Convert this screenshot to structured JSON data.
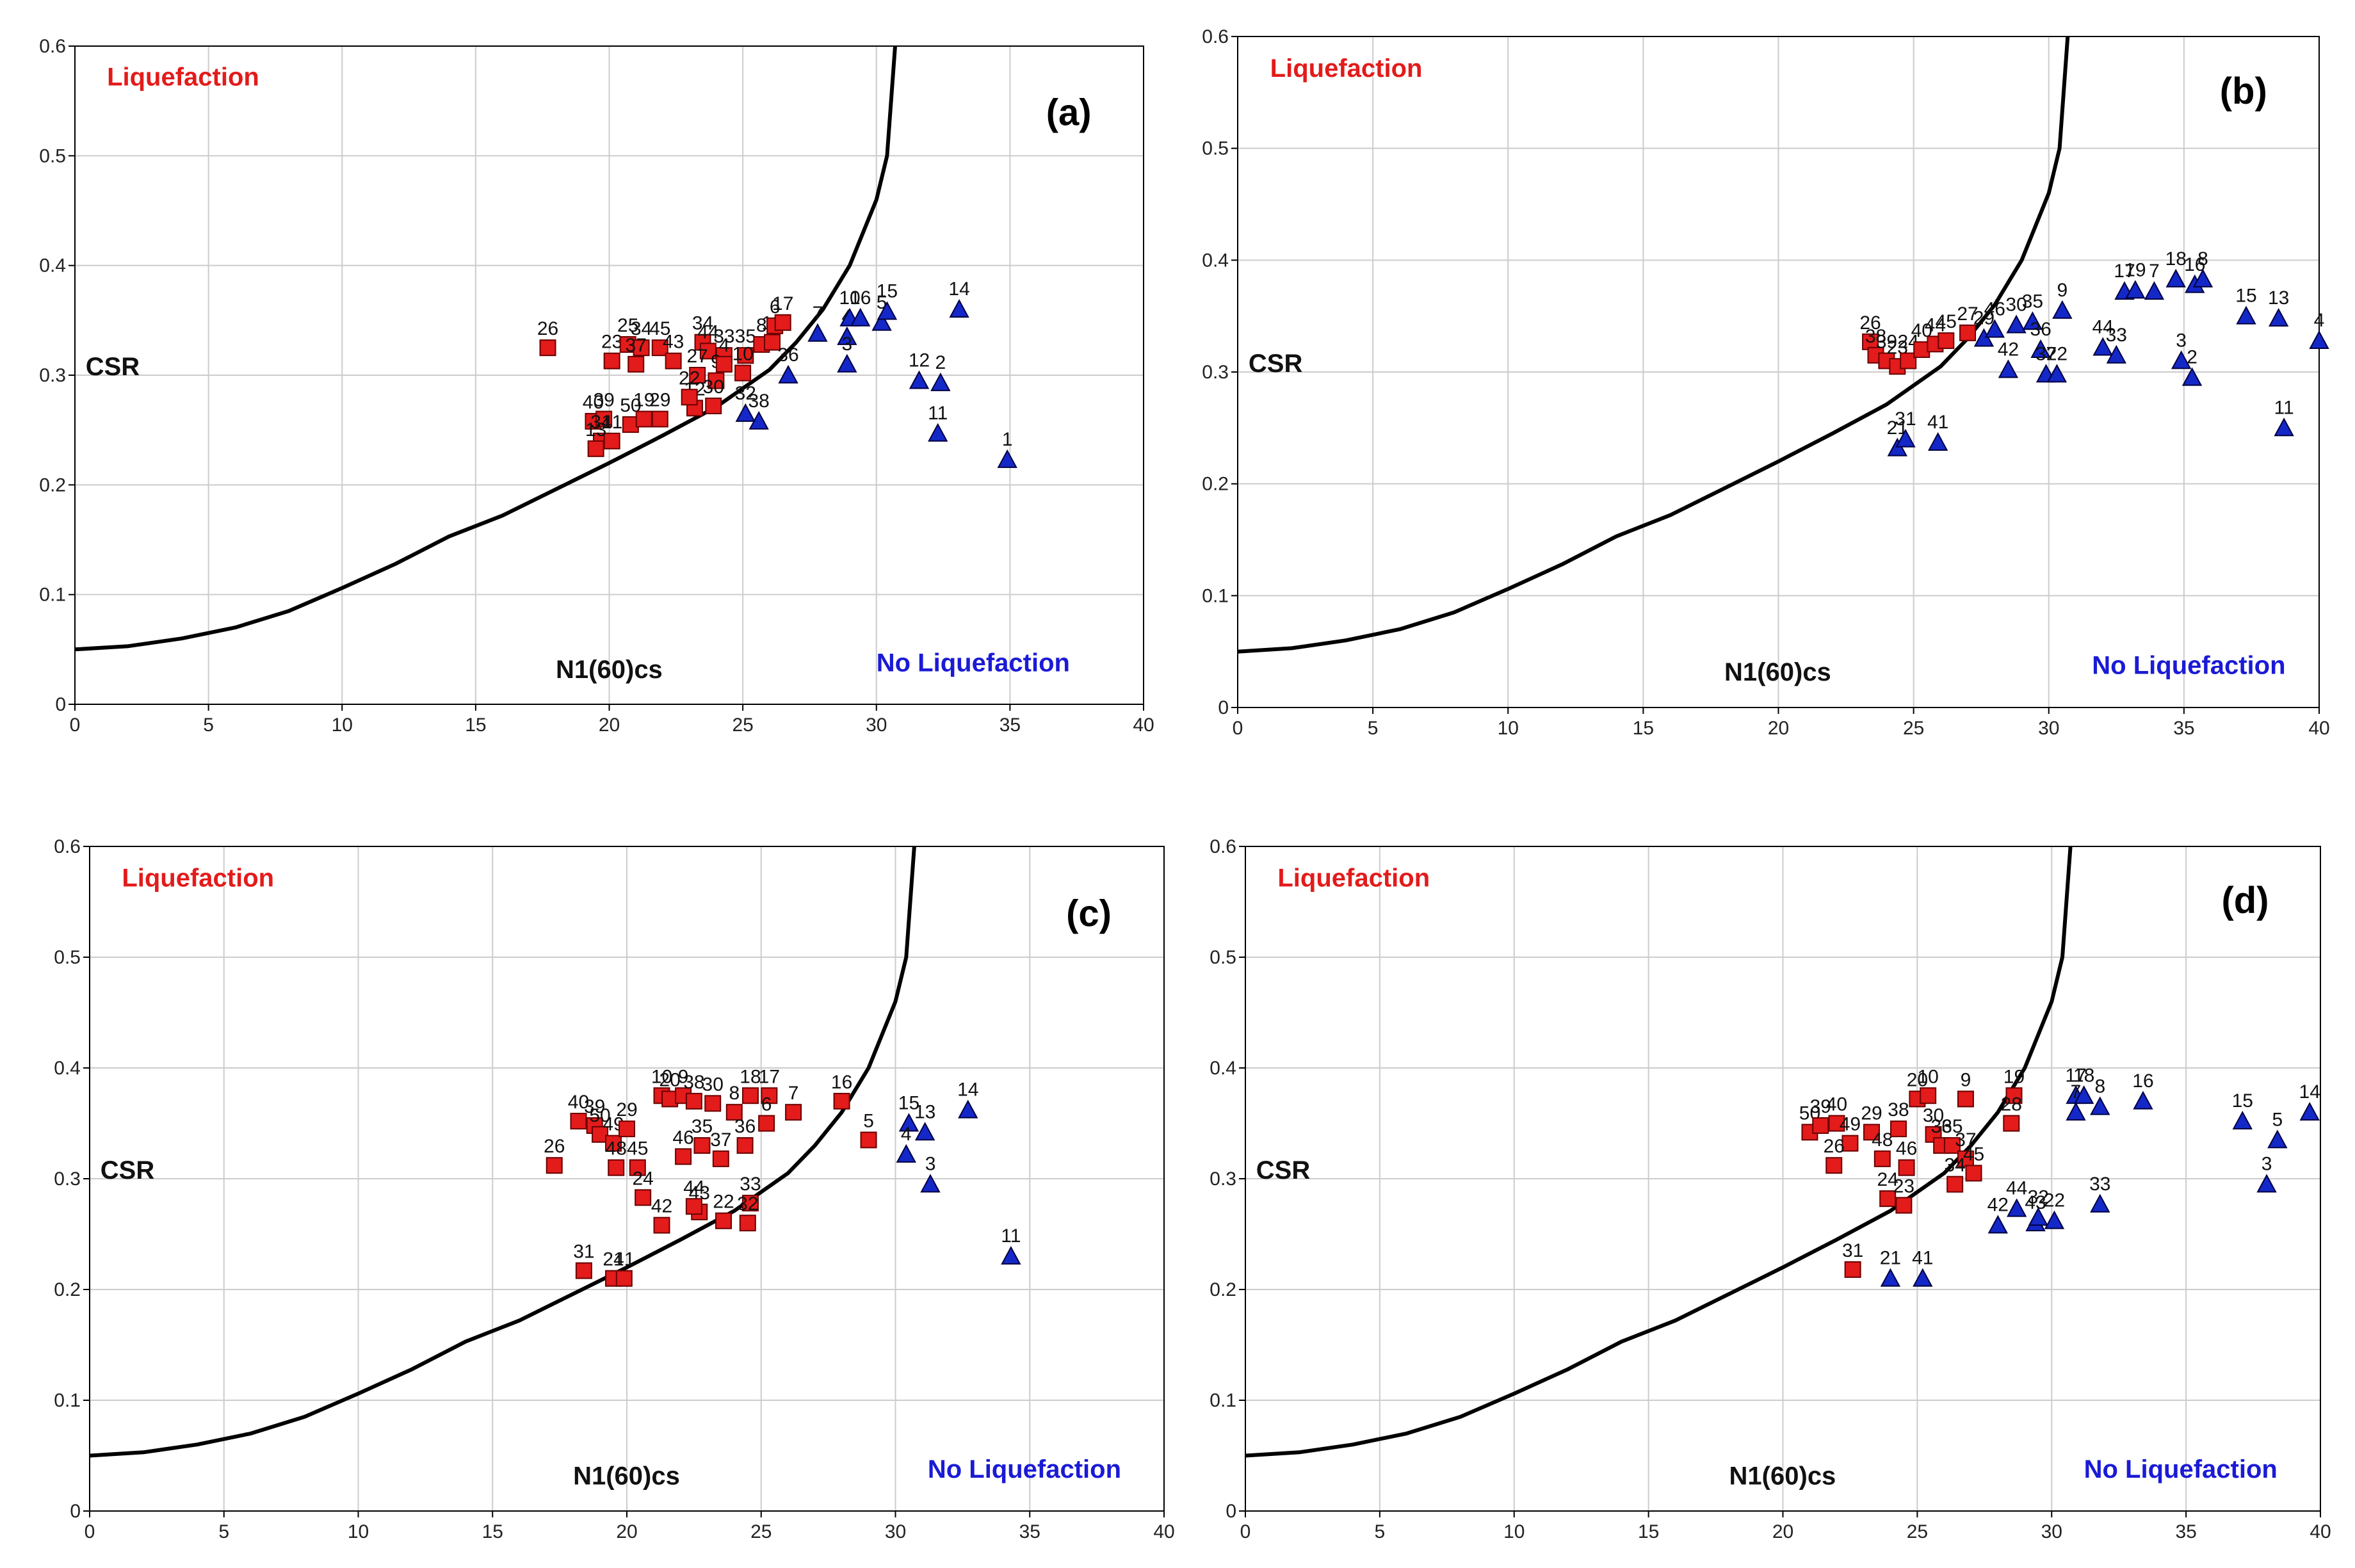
{
  "common": {
    "x_ticks": [
      0,
      5,
      10,
      15,
      20,
      25,
      30,
      35,
      40
    ],
    "y_ticks": [
      0,
      0.1,
      0.2,
      0.3,
      0.4,
      0.5,
      0.6
    ],
    "xlabel": "N1(60)cs",
    "ylabel": "CSR",
    "region_liq": "Liquefaction",
    "region_noliq": "No Liquefaction",
    "colors": {
      "liq": "#e31b1b",
      "noliq": "#1428c8",
      "curve": "#000000",
      "grid": "#cccccc",
      "liq_text": "#e31b1b",
      "noliq_text": "#1a1ad6"
    }
  },
  "chart_data": [
    {
      "type": "scatter",
      "panel": "(a)",
      "title": "(a)",
      "xlim": [
        0,
        40
      ],
      "ylim": [
        0,
        0.6
      ],
      "xlabel": "N1(60)cs",
      "ylabel": "CSR",
      "curve": [
        [
          0,
          0.05
        ],
        [
          2,
          0.053
        ],
        [
          4,
          0.06
        ],
        [
          6,
          0.07
        ],
        [
          8,
          0.085
        ],
        [
          10,
          0.106
        ],
        [
          12,
          0.128
        ],
        [
          14,
          0.153
        ],
        [
          16,
          0.172
        ],
        [
          18,
          0.196
        ],
        [
          20,
          0.22
        ],
        [
          22,
          0.245
        ],
        [
          24,
          0.271
        ],
        [
          26,
          0.305
        ],
        [
          27,
          0.33
        ],
        [
          28,
          0.36
        ],
        [
          29,
          0.4
        ],
        [
          30,
          0.46
        ],
        [
          30.4,
          0.5
        ],
        [
          30.7,
          0.6
        ]
      ],
      "liquefaction": [
        {
          "id": "26",
          "x": 17.7,
          "y": 0.325
        },
        {
          "id": "23",
          "x": 20.1,
          "y": 0.313
        },
        {
          "id": "25",
          "x": 20.7,
          "y": 0.328
        },
        {
          "id": "34",
          "x": 21.2,
          "y": 0.325
        },
        {
          "id": "45",
          "x": 21.9,
          "y": 0.325
        },
        {
          "id": "43",
          "x": 22.4,
          "y": 0.313
        },
        {
          "id": "40",
          "x": 19.4,
          "y": 0.258
        },
        {
          "id": "39",
          "x": 19.8,
          "y": 0.26
        },
        {
          "id": "31",
          "x": 19.7,
          "y": 0.24
        },
        {
          "id": "41",
          "x": 20.1,
          "y": 0.24
        },
        {
          "id": "50",
          "x": 20.8,
          "y": 0.255
        },
        {
          "id": "19",
          "x": 21.3,
          "y": 0.26
        },
        {
          "id": "29",
          "x": 21.9,
          "y": 0.26
        },
        {
          "id": "34",
          "x": 23.5,
          "y": 0.33
        },
        {
          "id": "44",
          "x": 23.7,
          "y": 0.322
        },
        {
          "id": "33",
          "x": 24.3,
          "y": 0.318
        },
        {
          "id": "35",
          "x": 25.1,
          "y": 0.318
        },
        {
          "id": "27",
          "x": 23.3,
          "y": 0.3
        },
        {
          "id": "9",
          "x": 24.0,
          "y": 0.295
        },
        {
          "id": "12",
          "x": 23.2,
          "y": 0.27
        },
        {
          "id": "30",
          "x": 23.9,
          "y": 0.272
        },
        {
          "id": "4",
          "x": 24.3,
          "y": 0.31
        },
        {
          "id": "10",
          "x": 25.0,
          "y": 0.302
        },
        {
          "id": "8",
          "x": 25.7,
          "y": 0.328
        },
        {
          "id": "18",
          "x": 26.1,
          "y": 0.33
        },
        {
          "id": "6",
          "x": 26.2,
          "y": 0.345
        },
        {
          "id": "17",
          "x": 26.5,
          "y": 0.348
        },
        {
          "id": "37",
          "x": 21.0,
          "y": 0.31
        },
        {
          "id": "13",
          "x": 19.5,
          "y": 0.233
        },
        {
          "id": "22",
          "x": 23.0,
          "y": 0.28
        }
      ],
      "no_liquefaction": [
        {
          "id": "7",
          "x": 27.8,
          "y": 0.338
        },
        {
          "id": "4",
          "x": 28.9,
          "y": 0.335
        },
        {
          "id": "3",
          "x": 28.9,
          "y": 0.31
        },
        {
          "id": "10",
          "x": 29.0,
          "y": 0.352
        },
        {
          "id": "16",
          "x": 29.4,
          "y": 0.352
        },
        {
          "id": "5",
          "x": 30.2,
          "y": 0.348
        },
        {
          "id": "15",
          "x": 30.4,
          "y": 0.358
        },
        {
          "id": "14",
          "x": 33.1,
          "y": 0.36
        },
        {
          "id": "12",
          "x": 31.6,
          "y": 0.295
        },
        {
          "id": "2",
          "x": 32.4,
          "y": 0.293
        },
        {
          "id": "11",
          "x": 32.3,
          "y": 0.247
        },
        {
          "id": "1",
          "x": 34.9,
          "y": 0.223
        },
        {
          "id": "36",
          "x": 26.7,
          "y": 0.3
        },
        {
          "id": "38",
          "x": 25.6,
          "y": 0.258
        },
        {
          "id": "32",
          "x": 25.1,
          "y": 0.265
        }
      ]
    },
    {
      "type": "scatter",
      "panel": "(b)",
      "title": "(b)",
      "xlim": [
        0,
        40
      ],
      "ylim": [
        0,
        0.6
      ],
      "xlabel": "N1(60)cs",
      "ylabel": "CSR",
      "curve": [
        [
          0,
          0.05
        ],
        [
          2,
          0.053
        ],
        [
          4,
          0.06
        ],
        [
          6,
          0.07
        ],
        [
          8,
          0.085
        ],
        [
          10,
          0.106
        ],
        [
          12,
          0.128
        ],
        [
          14,
          0.153
        ],
        [
          16,
          0.172
        ],
        [
          18,
          0.196
        ],
        [
          20,
          0.22
        ],
        [
          22,
          0.245
        ],
        [
          24,
          0.271
        ],
        [
          26,
          0.305
        ],
        [
          27,
          0.33
        ],
        [
          28,
          0.36
        ],
        [
          29,
          0.4
        ],
        [
          30,
          0.46
        ],
        [
          30.4,
          0.5
        ],
        [
          30.7,
          0.6
        ]
      ],
      "liquefaction": [
        {
          "id": "26",
          "x": 23.4,
          "y": 0.327
        },
        {
          "id": "38",
          "x": 23.6,
          "y": 0.315
        },
        {
          "id": "39",
          "x": 24.0,
          "y": 0.31
        },
        {
          "id": "23",
          "x": 24.4,
          "y": 0.305
        },
        {
          "id": "24",
          "x": 24.8,
          "y": 0.31
        },
        {
          "id": "40",
          "x": 25.3,
          "y": 0.32
        },
        {
          "id": "44",
          "x": 25.8,
          "y": 0.325
        },
        {
          "id": "45",
          "x": 26.2,
          "y": 0.328
        },
        {
          "id": "27",
          "x": 27.0,
          "y": 0.335
        }
      ],
      "no_liquefaction": [
        {
          "id": "29",
          "x": 27.6,
          "y": 0.33
        },
        {
          "id": "46",
          "x": 28.0,
          "y": 0.338
        },
        {
          "id": "42",
          "x": 28.5,
          "y": 0.302
        },
        {
          "id": "30",
          "x": 28.8,
          "y": 0.342
        },
        {
          "id": "35",
          "x": 29.4,
          "y": 0.345
        },
        {
          "id": "36",
          "x": 29.7,
          "y": 0.32
        },
        {
          "id": "37",
          "x": 29.9,
          "y": 0.298
        },
        {
          "id": "22",
          "x": 30.3,
          "y": 0.298
        },
        {
          "id": "9",
          "x": 30.5,
          "y": 0.355
        },
        {
          "id": "21",
          "x": 24.4,
          "y": 0.232
        },
        {
          "id": "31",
          "x": 24.7,
          "y": 0.24
        },
        {
          "id": "41",
          "x": 25.9,
          "y": 0.237
        },
        {
          "id": "44",
          "x": 32.0,
          "y": 0.322
        },
        {
          "id": "33",
          "x": 32.5,
          "y": 0.315
        },
        {
          "id": "17",
          "x": 32.8,
          "y": 0.372
        },
        {
          "id": "19",
          "x": 33.2,
          "y": 0.373
        },
        {
          "id": "7",
          "x": 33.9,
          "y": 0.372
        },
        {
          "id": "18",
          "x": 34.7,
          "y": 0.383
        },
        {
          "id": "16",
          "x": 35.4,
          "y": 0.378
        },
        {
          "id": "8",
          "x": 35.7,
          "y": 0.383
        },
        {
          "id": "3",
          "x": 34.9,
          "y": 0.31
        },
        {
          "id": "2",
          "x": 35.3,
          "y": 0.295
        },
        {
          "id": "15",
          "x": 37.3,
          "y": 0.35
        },
        {
          "id": "13",
          "x": 38.5,
          "y": 0.348
        },
        {
          "id": "11",
          "x": 38.7,
          "y": 0.25
        },
        {
          "id": "4",
          "x": 40.0,
          "y": 0.328
        }
      ]
    },
    {
      "type": "scatter",
      "panel": "(c)",
      "title": "(c)",
      "xlim": [
        0,
        40
      ],
      "ylim": [
        0,
        0.6
      ],
      "xlabel": "N1(60)cs",
      "ylabel": "CSR",
      "curve": [
        [
          0,
          0.05
        ],
        [
          2,
          0.053
        ],
        [
          4,
          0.06
        ],
        [
          6,
          0.07
        ],
        [
          8,
          0.085
        ],
        [
          10,
          0.106
        ],
        [
          12,
          0.128
        ],
        [
          14,
          0.153
        ],
        [
          16,
          0.172
        ],
        [
          18,
          0.196
        ],
        [
          20,
          0.22
        ],
        [
          22,
          0.245
        ],
        [
          24,
          0.271
        ],
        [
          26,
          0.305
        ],
        [
          27,
          0.33
        ],
        [
          28,
          0.36
        ],
        [
          29,
          0.4
        ],
        [
          30,
          0.46
        ],
        [
          30.4,
          0.5
        ],
        [
          30.7,
          0.6
        ]
      ],
      "liquefaction": [
        {
          "id": "26",
          "x": 17.3,
          "y": 0.312
        },
        {
          "id": "40",
          "x": 18.2,
          "y": 0.352
        },
        {
          "id": "39",
          "x": 18.8,
          "y": 0.348
        },
        {
          "id": "50",
          "x": 19.0,
          "y": 0.34
        },
        {
          "id": "49",
          "x": 19.5,
          "y": 0.332
        },
        {
          "id": "29",
          "x": 20.0,
          "y": 0.345
        },
        {
          "id": "48",
          "x": 19.6,
          "y": 0.31
        },
        {
          "id": "45",
          "x": 20.4,
          "y": 0.31
        },
        {
          "id": "24",
          "x": 20.6,
          "y": 0.283
        },
        {
          "id": "42",
          "x": 21.3,
          "y": 0.258
        },
        {
          "id": "31",
          "x": 18.4,
          "y": 0.217
        },
        {
          "id": "21",
          "x": 19.5,
          "y": 0.21
        },
        {
          "id": "41",
          "x": 19.9,
          "y": 0.21
        },
        {
          "id": "10",
          "x": 21.3,
          "y": 0.375
        },
        {
          "id": "20",
          "x": 21.6,
          "y": 0.372
        },
        {
          "id": "9",
          "x": 22.1,
          "y": 0.375
        },
        {
          "id": "38",
          "x": 22.5,
          "y": 0.37
        },
        {
          "id": "30",
          "x": 23.2,
          "y": 0.368
        },
        {
          "id": "46",
          "x": 22.1,
          "y": 0.32
        },
        {
          "id": "35",
          "x": 22.8,
          "y": 0.33
        },
        {
          "id": "37",
          "x": 23.5,
          "y": 0.318
        },
        {
          "id": "43",
          "x": 22.7,
          "y": 0.27
        },
        {
          "id": "44",
          "x": 22.5,
          "y": 0.275
        },
        {
          "id": "22",
          "x": 23.6,
          "y": 0.262
        },
        {
          "id": "33",
          "x": 24.6,
          "y": 0.278
        },
        {
          "id": "32",
          "x": 24.5,
          "y": 0.26
        },
        {
          "id": "8",
          "x": 24.0,
          "y": 0.36
        },
        {
          "id": "18",
          "x": 24.6,
          "y": 0.375
        },
        {
          "id": "17",
          "x": 25.3,
          "y": 0.375
        },
        {
          "id": "36",
          "x": 24.4,
          "y": 0.33
        },
        {
          "id": "7",
          "x": 26.2,
          "y": 0.36
        },
        {
          "id": "6",
          "x": 25.2,
          "y": 0.35
        },
        {
          "id": "16",
          "x": 28.0,
          "y": 0.37
        },
        {
          "id": "5",
          "x": 29.0,
          "y": 0.335
        }
      ],
      "no_liquefaction": [
        {
          "id": "15",
          "x": 30.5,
          "y": 0.35
        },
        {
          "id": "13",
          "x": 31.1,
          "y": 0.342
        },
        {
          "id": "4",
          "x": 30.4,
          "y": 0.322
        },
        {
          "id": "3",
          "x": 31.3,
          "y": 0.295
        },
        {
          "id": "14",
          "x": 32.7,
          "y": 0.362
        },
        {
          "id": "11",
          "x": 34.3,
          "y": 0.23
        }
      ]
    },
    {
      "type": "scatter",
      "panel": "(d)",
      "title": "(d)",
      "xlim": [
        0,
        40
      ],
      "ylim": [
        0,
        0.6
      ],
      "xlabel": "N1(60)cs",
      "ylabel": "CSR",
      "curve": [
        [
          0,
          0.05
        ],
        [
          2,
          0.053
        ],
        [
          4,
          0.06
        ],
        [
          6,
          0.07
        ],
        [
          8,
          0.085
        ],
        [
          10,
          0.106
        ],
        [
          12,
          0.128
        ],
        [
          14,
          0.153
        ],
        [
          16,
          0.172
        ],
        [
          18,
          0.196
        ],
        [
          20,
          0.22
        ],
        [
          22,
          0.245
        ],
        [
          24,
          0.271
        ],
        [
          26,
          0.305
        ],
        [
          27,
          0.33
        ],
        [
          28,
          0.36
        ],
        [
          29,
          0.4
        ],
        [
          30,
          0.46
        ],
        [
          30.4,
          0.5
        ],
        [
          30.7,
          0.6
        ]
      ],
      "liquefaction": [
        {
          "id": "50",
          "x": 21.0,
          "y": 0.342
        },
        {
          "id": "39",
          "x": 21.4,
          "y": 0.348
        },
        {
          "id": "40",
          "x": 22.0,
          "y": 0.35
        },
        {
          "id": "49",
          "x": 22.5,
          "y": 0.332
        },
        {
          "id": "26",
          "x": 21.9,
          "y": 0.312
        },
        {
          "id": "29",
          "x": 23.3,
          "y": 0.342
        },
        {
          "id": "48",
          "x": 23.7,
          "y": 0.318
        },
        {
          "id": "38",
          "x": 24.3,
          "y": 0.345
        },
        {
          "id": "46",
          "x": 24.6,
          "y": 0.31
        },
        {
          "id": "24",
          "x": 23.9,
          "y": 0.282
        },
        {
          "id": "23",
          "x": 24.5,
          "y": 0.276
        },
        {
          "id": "20",
          "x": 25.0,
          "y": 0.372
        },
        {
          "id": "10",
          "x": 25.4,
          "y": 0.375
        },
        {
          "id": "30",
          "x": 25.6,
          "y": 0.34
        },
        {
          "id": "36",
          "x": 25.9,
          "y": 0.33
        },
        {
          "id": "35",
          "x": 26.3,
          "y": 0.33
        },
        {
          "id": "37",
          "x": 26.8,
          "y": 0.318
        },
        {
          "id": "45",
          "x": 27.1,
          "y": 0.305
        },
        {
          "id": "9",
          "x": 26.8,
          "y": 0.372
        },
        {
          "id": "19",
          "x": 28.6,
          "y": 0.375
        },
        {
          "id": "28",
          "x": 28.5,
          "y": 0.35
        },
        {
          "id": "31",
          "x": 22.6,
          "y": 0.218
        },
        {
          "id": "34",
          "x": 26.4,
          "y": 0.295
        }
      ],
      "no_liquefaction": [
        {
          "id": "21",
          "x": 24.0,
          "y": 0.21
        },
        {
          "id": "41",
          "x": 25.2,
          "y": 0.21
        },
        {
          "id": "42",
          "x": 28.0,
          "y": 0.258
        },
        {
          "id": "44",
          "x": 28.7,
          "y": 0.273
        },
        {
          "id": "43",
          "x": 29.4,
          "y": 0.26
        },
        {
          "id": "32",
          "x": 29.5,
          "y": 0.265
        },
        {
          "id": "22",
          "x": 30.1,
          "y": 0.262
        },
        {
          "id": "33",
          "x": 31.8,
          "y": 0.277
        },
        {
          "id": "17",
          "x": 30.9,
          "y": 0.375
        },
        {
          "id": "18",
          "x": 31.2,
          "y": 0.375
        },
        {
          "id": "7",
          "x": 30.9,
          "y": 0.36
        },
        {
          "id": "8",
          "x": 31.8,
          "y": 0.365
        },
        {
          "id": "16",
          "x": 33.4,
          "y": 0.37
        },
        {
          "id": "15",
          "x": 37.1,
          "y": 0.352
        },
        {
          "id": "3",
          "x": 38.0,
          "y": 0.295
        },
        {
          "id": "5",
          "x": 38.4,
          "y": 0.335
        },
        {
          "id": "14",
          "x": 39.6,
          "y": 0.36
        }
      ]
    }
  ]
}
